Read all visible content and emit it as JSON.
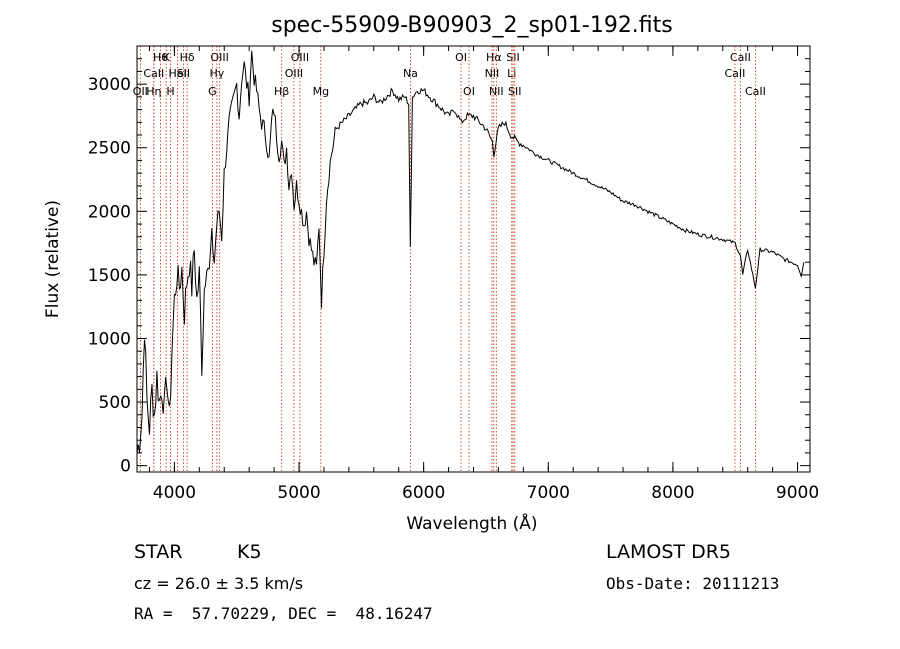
{
  "chart_data": {
    "type": "line",
    "title": "spec-55909-B90903_2_sp01-192.fits",
    "xlabel": "Wavelength (Å)",
    "ylabel": "Flux (relative)",
    "xlim": [
      3700,
      9100
    ],
    "ylim": [
      -50,
      3300
    ],
    "xticks": [
      4000,
      5000,
      6000,
      7000,
      8000,
      9000
    ],
    "yticks": [
      0,
      500,
      1000,
      1500,
      2000,
      2500,
      3000
    ],
    "series": [
      {
        "x": [
          3700,
          3720,
          3740,
          3760,
          3780,
          3800,
          3820,
          3840,
          3860,
          3880,
          3900,
          3920,
          3940,
          3960,
          3980,
          4000,
          4020,
          4040,
          4060,
          4080,
          4100,
          4120,
          4140,
          4160,
          4180,
          4200,
          4220,
          4240,
          4260,
          4280,
          4300,
          4320,
          4340,
          4360,
          4380,
          4400,
          4420,
          4440,
          4460,
          4480,
          4500,
          4520,
          4540,
          4560,
          4580,
          4600,
          4620,
          4640,
          4660,
          4680,
          4700,
          4720,
          4740,
          4760,
          4780,
          4800,
          4820,
          4840,
          4860,
          4880,
          4900,
          4920,
          4940,
          4960,
          4980,
          5000,
          5020,
          5040,
          5060,
          5080,
          5100,
          5120,
          5140,
          5160,
          5180,
          5200,
          5220,
          5240,
          5260,
          5280,
          5300,
          5350,
          5400,
          5450,
          5500,
          5550,
          5600,
          5650,
          5700,
          5750,
          5800,
          5850,
          5880,
          5893,
          5900,
          5910,
          5950,
          6000,
          6050,
          6100,
          6150,
          6200,
          6250,
          6300,
          6350,
          6400,
          6450,
          6500,
          6550,
          6563,
          6600,
          6650,
          6700,
          6750,
          6800,
          6900,
          7000,
          7100,
          7200,
          7300,
          7400,
          7500,
          7600,
          7700,
          7800,
          7900,
          8000,
          8100,
          8200,
          8300,
          8400,
          8500,
          8542,
          8560,
          8600,
          8662,
          8700,
          8800,
          8900,
          9000,
          9030,
          9050
        ],
        "y": [
          100,
          200,
          400,
          1100,
          500,
          300,
          600,
          400,
          700,
          500,
          600,
          450,
          700,
          350,
          900,
          1300,
          1500,
          1400,
          1550,
          1200,
          1450,
          1600,
          1400,
          1700,
          1300,
          1500,
          800,
          1400,
          1650,
          1500,
          1800,
          1600,
          1900,
          2000,
          1800,
          2300,
          2500,
          2700,
          2800,
          2900,
          3000,
          2750,
          3050,
          3150,
          3000,
          2900,
          3250,
          3050,
          2950,
          2800,
          2700,
          2650,
          2550,
          2400,
          2700,
          2800,
          2600,
          2450,
          2550,
          2350,
          2500,
          2200,
          2350,
          2050,
          2200,
          2100,
          2000,
          1900,
          2000,
          1800,
          1700,
          1600,
          1550,
          1900,
          1300,
          1700,
          2100,
          2300,
          2450,
          2550,
          2650,
          2700,
          2750,
          2800,
          2850,
          2850,
          2900,
          2850,
          2900,
          2950,
          2880,
          2900,
          2850,
          1700,
          2200,
          2900,
          2950,
          2950,
          2900,
          2850,
          2800,
          2750,
          2800,
          2700,
          2750,
          2750,
          2700,
          2650,
          2550,
          2450,
          2650,
          2700,
          2600,
          2550,
          2520,
          2450,
          2400,
          2350,
          2300,
          2250,
          2200,
          2150,
          2080,
          2050,
          2000,
          1950,
          1900,
          1850,
          1820,
          1800,
          1780,
          1750,
          1650,
          1500,
          1700,
          1400,
          1700,
          1680,
          1620,
          1580,
          1500,
          1600
        ]
      }
    ],
    "line_markers": [
      {
        "wave": 3889,
        "label": "Hθ",
        "row": 1
      },
      {
        "wave": 3934,
        "label": "K",
        "row": 1
      },
      {
        "wave": 3969,
        "label": "H",
        "row": 3
      },
      {
        "wave": 4102,
        "label": "Hδ",
        "row": 1
      },
      {
        "wave": 4072,
        "label": "SII",
        "row": 2
      },
      {
        "wave": 4026,
        "label": "HeI",
        "row": 2
      },
      {
        "wave": 3835,
        "label": "CaII",
        "row": 2
      },
      {
        "wave": 3727,
        "label": "OII",
        "row": 3
      },
      {
        "wave": 3835,
        "label": "Hη",
        "row": 3
      },
      {
        "wave": 4363,
        "label": "OIII",
        "row": 1
      },
      {
        "wave": 4341,
        "label": "Hγ",
        "row": 2
      },
      {
        "wave": 4305,
        "label": "G",
        "row": 3
      },
      {
        "wave": 4861,
        "label": "Hβ",
        "row": 3
      },
      {
        "wave": 5007,
        "label": "OIII",
        "row": 1
      },
      {
        "wave": 4959,
        "label": "OIII",
        "row": 2
      },
      {
        "wave": 5175,
        "label": "Mg",
        "row": 3
      },
      {
        "wave": 5894,
        "label": "Na",
        "row": 2
      },
      {
        "wave": 6300,
        "label": "OI",
        "row": 1
      },
      {
        "wave": 6364,
        "label": "OI",
        "row": 3
      },
      {
        "wave": 6563,
        "label": "Hα",
        "row": 1
      },
      {
        "wave": 6548,
        "label": "NII",
        "row": 2
      },
      {
        "wave": 6583,
        "label": "NII",
        "row": 3
      },
      {
        "wave": 6717,
        "label": "SII",
        "row": 1
      },
      {
        "wave": 6707,
        "label": "Li",
        "row": 2
      },
      {
        "wave": 6731,
        "label": "SII",
        "row": 3
      },
      {
        "wave": 8542,
        "label": "CaII",
        "row": 1
      },
      {
        "wave": 8498,
        "label": "CaII",
        "row": 2
      },
      {
        "wave": 8662,
        "label": "CaII",
        "row": 3
      }
    ]
  },
  "info": {
    "class_label": "STAR",
    "subclass": "K5",
    "survey": "LAMOST DR5",
    "cz": "cz = 26.0 ± 3.5 km/s",
    "obs_date": "Obs-Date: 20111213",
    "radec": "RA =  57.70229, DEC =  48.16247"
  },
  "colors": {
    "marker_line": "#cc2200",
    "spectrum": "#000000"
  }
}
